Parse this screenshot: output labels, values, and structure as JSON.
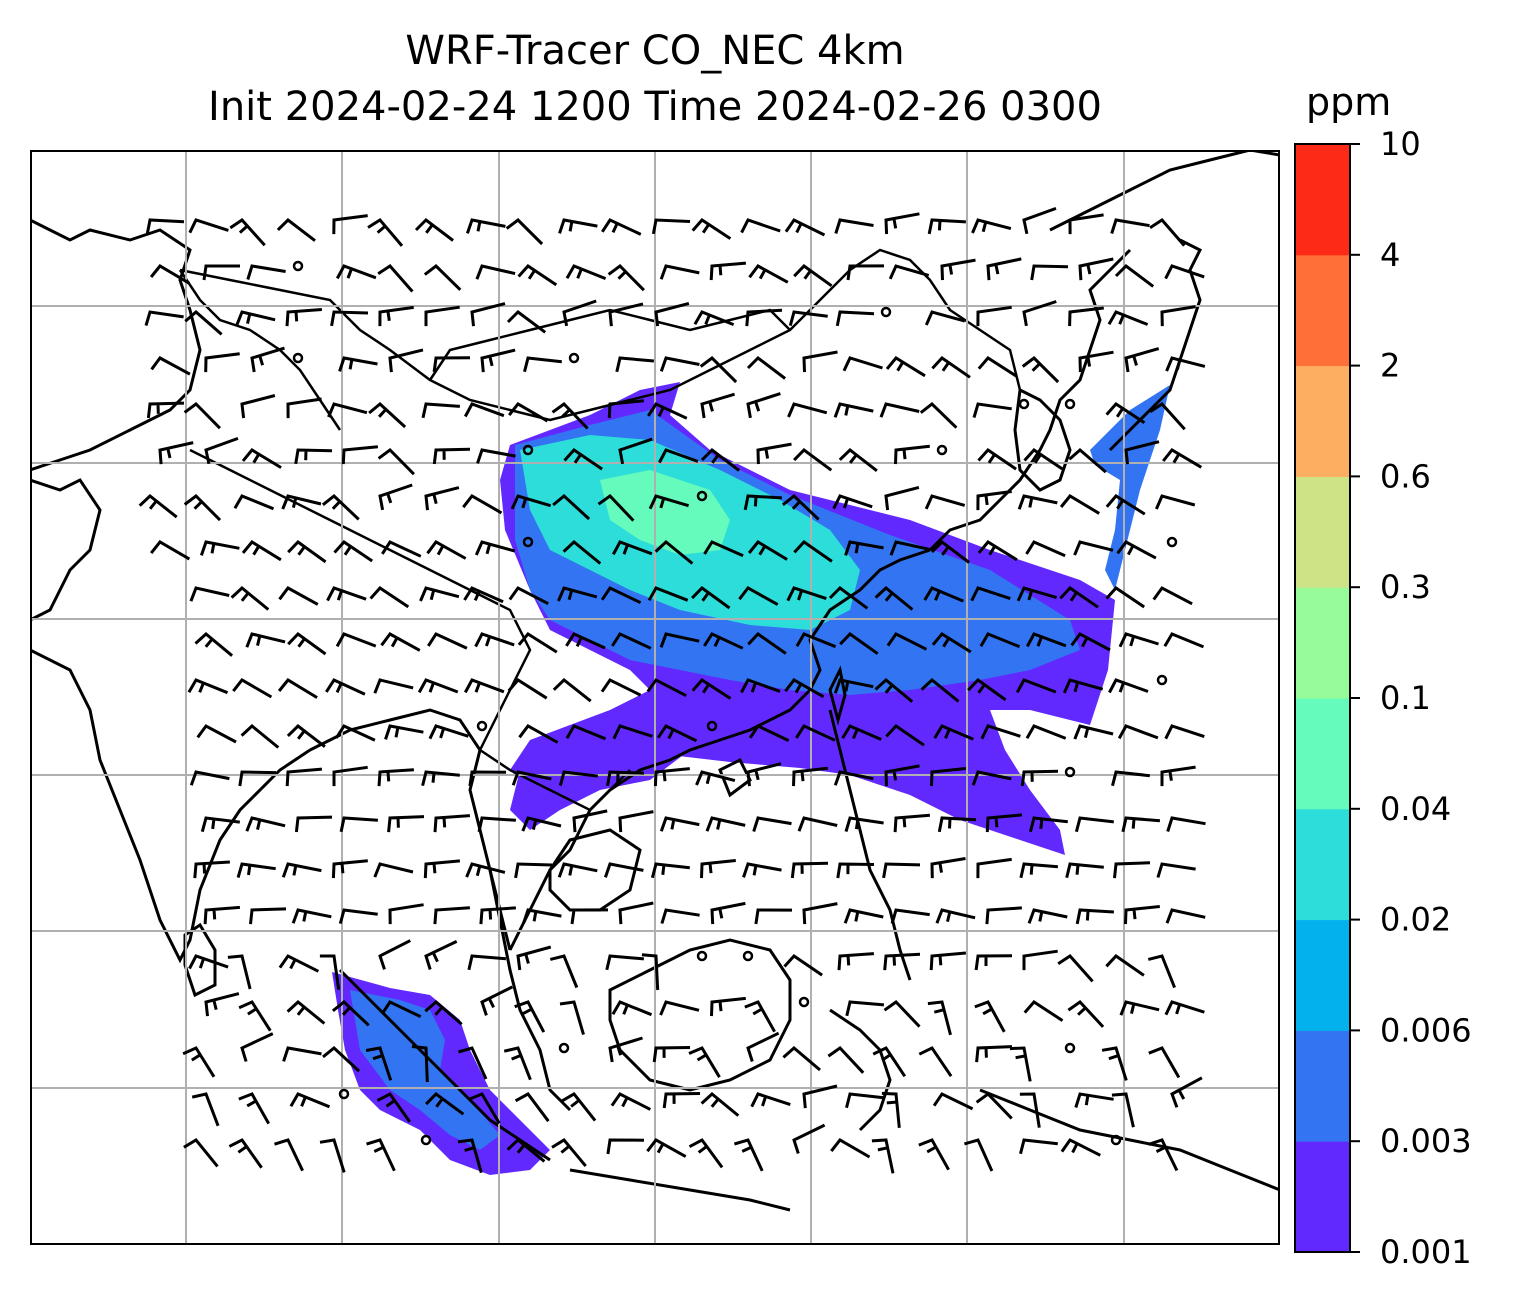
{
  "title": {
    "line1": "WRF-Tracer CO_NEC 4km",
    "line2": "Init 2024-02-24 1200 Time 2024-02-26 0300"
  },
  "colorbar": {
    "unit": "ppm",
    "levels": [
      "0.001",
      "0.003",
      "0.006",
      "0.02",
      "0.04",
      "0.1",
      "0.3",
      "0.6",
      "2",
      "4",
      "10"
    ],
    "colors": [
      "#6229ff",
      "#3374f2",
      "#03b2ec",
      "#2dddd9",
      "#65fbbc",
      "#97fb9a",
      "#cde385",
      "#fdae61",
      "#ff7038",
      "#fd2a17"
    ]
  },
  "chart_data": {
    "type": "map",
    "variable": "CO_NEC tracer",
    "unit": "ppm",
    "overlay": "wind barbs",
    "gridlines": true
  }
}
